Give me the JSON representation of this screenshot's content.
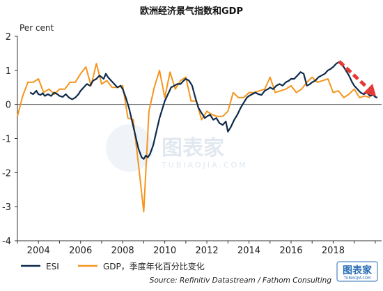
{
  "chart_data": {
    "type": "line",
    "title": "欧洲经济景气指数和GDP",
    "ylabel": "Per cent",
    "ylim": [
      -4,
      2
    ],
    "yticks": [
      2,
      1,
      0,
      -1,
      -2,
      -3,
      -4
    ],
    "xticks": [
      2004,
      2006,
      2008,
      2010,
      2012,
      2014,
      2016,
      2018
    ],
    "xlim": [
      2003,
      2020.3
    ],
    "grid": false,
    "legend_position": "bottom-left",
    "source": "Source: Refinitiv Datastream / Fathom Consulting",
    "colors": {
      "ESI": "#0d2a4a",
      "GDP": "#f5951d",
      "arrow": "#e53935"
    },
    "series": [
      {
        "name": "ESI",
        "color": "#0d2a4a",
        "x": [
          2003.6,
          2003.75,
          2003.9,
          2004.0,
          2004.1,
          2004.2,
          2004.3,
          2004.45,
          2004.6,
          2004.75,
          2004.9,
          2005.0,
          2005.15,
          2005.3,
          2005.45,
          2005.6,
          2005.75,
          2005.9,
          2006.0,
          2006.15,
          2006.3,
          2006.45,
          2006.6,
          2006.75,
          2006.9,
          2007.0,
          2007.1,
          2007.2,
          2007.3,
          2007.45,
          2007.6,
          2007.75,
          2007.9,
          2008.0,
          2008.15,
          2008.3,
          2008.45,
          2008.6,
          2008.75,
          2008.9,
          2009.0,
          2009.1,
          2009.2,
          2009.3,
          2009.45,
          2009.6,
          2009.75,
          2009.9,
          2010.0,
          2010.15,
          2010.3,
          2010.45,
          2010.6,
          2010.75,
          2010.9,
          2011.0,
          2011.15,
          2011.3,
          2011.45,
          2011.6,
          2011.75,
          2011.9,
          2012.0,
          2012.15,
          2012.3,
          2012.45,
          2012.6,
          2012.75,
          2012.9,
          2013.0,
          2013.15,
          2013.3,
          2013.45,
          2013.6,
          2013.75,
          2013.9,
          2014.0,
          2014.15,
          2014.3,
          2014.45,
          2014.6,
          2014.75,
          2014.9,
          2015.0,
          2015.15,
          2015.3,
          2015.45,
          2015.6,
          2015.75,
          2015.9,
          2016.0,
          2016.15,
          2016.3,
          2016.45,
          2016.6,
          2016.75,
          2016.9,
          2017.0,
          2017.15,
          2017.3,
          2017.45,
          2017.6,
          2017.75,
          2017.9,
          2018.0,
          2018.15,
          2018.3,
          2018.45,
          2018.6,
          2018.75,
          2018.9,
          2019.0,
          2019.15,
          2019.3,
          2019.45,
          2019.6,
          2019.75,
          2019.9,
          2020.0,
          2020.1
        ],
        "values": [
          0.35,
          0.3,
          0.4,
          0.3,
          0.28,
          0.33,
          0.25,
          0.3,
          0.25,
          0.35,
          0.3,
          0.25,
          0.22,
          0.3,
          0.2,
          0.15,
          0.2,
          0.3,
          0.4,
          0.5,
          0.6,
          0.55,
          0.7,
          0.75,
          0.85,
          0.8,
          0.75,
          0.9,
          0.8,
          0.7,
          0.6,
          0.5,
          0.55,
          0.45,
          0.2,
          -0.1,
          -0.5,
          -0.9,
          -1.3,
          -1.55,
          -1.6,
          -1.5,
          -1.55,
          -1.45,
          -1.2,
          -0.8,
          -0.4,
          -0.1,
          0.1,
          0.3,
          0.5,
          0.55,
          0.6,
          0.6,
          0.7,
          0.75,
          0.7,
          0.55,
          0.2,
          -0.1,
          -0.25,
          -0.4,
          -0.35,
          -0.3,
          -0.45,
          -0.4,
          -0.55,
          -0.6,
          -0.5,
          -0.8,
          -0.65,
          -0.45,
          -0.3,
          -0.1,
          0.05,
          0.2,
          0.25,
          0.3,
          0.35,
          0.3,
          0.28,
          0.4,
          0.45,
          0.5,
          0.45,
          0.55,
          0.6,
          0.55,
          0.65,
          0.7,
          0.75,
          0.75,
          0.85,
          0.95,
          0.9,
          0.55,
          0.6,
          0.65,
          0.7,
          0.8,
          0.85,
          0.9,
          1.0,
          1.05,
          1.1,
          1.2,
          1.25,
          1.15,
          1.0,
          0.85,
          0.65,
          0.55,
          0.45,
          0.35,
          0.3,
          0.35,
          0.25,
          0.28,
          0.22,
          0.2
        ]
      },
      {
        "name": "GDP，季度年化百分比变化",
        "color": "#f5951d",
        "x": [
          2003.0,
          2003.25,
          2003.5,
          2003.75,
          2004.0,
          2004.25,
          2004.5,
          2004.75,
          2005.0,
          2005.25,
          2005.5,
          2005.75,
          2006.0,
          2006.25,
          2006.5,
          2006.75,
          2007.0,
          2007.25,
          2007.5,
          2007.75,
          2008.0,
          2008.25,
          2008.5,
          2008.75,
          2009.0,
          2009.25,
          2009.5,
          2009.75,
          2010.0,
          2010.25,
          2010.5,
          2010.75,
          2011.0,
          2011.25,
          2011.5,
          2011.75,
          2012.0,
          2012.25,
          2012.5,
          2012.75,
          2013.0,
          2013.25,
          2013.5,
          2013.75,
          2014.0,
          2014.25,
          2014.5,
          2014.75,
          2015.0,
          2015.25,
          2015.5,
          2015.75,
          2016.0,
          2016.25,
          2016.5,
          2016.75,
          2017.0,
          2017.25,
          2017.5,
          2017.75,
          2018.0,
          2018.25,
          2018.5,
          2018.75,
          2019.0,
          2019.25,
          2019.5,
          2019.75
        ],
        "values": [
          -0.35,
          0.25,
          0.65,
          0.65,
          0.75,
          0.35,
          0.45,
          0.3,
          0.45,
          0.45,
          0.65,
          0.65,
          0.9,
          1.1,
          0.55,
          1.2,
          0.6,
          0.7,
          0.5,
          0.5,
          0.55,
          -0.4,
          -0.45,
          -1.75,
          -3.15,
          -0.2,
          0.5,
          1.0,
          0.2,
          0.95,
          0.45,
          0.7,
          0.8,
          0.1,
          0.1,
          -0.45,
          -0.2,
          -0.3,
          -0.35,
          -0.35,
          -0.2,
          0.35,
          0.2,
          0.2,
          0.35,
          0.35,
          0.4,
          0.45,
          0.8,
          0.35,
          0.4,
          0.45,
          0.55,
          0.35,
          0.45,
          0.65,
          0.8,
          0.65,
          0.7,
          0.75,
          0.35,
          0.4,
          0.2,
          0.3,
          0.45,
          0.2,
          0.25,
          0.2
        ]
      }
    ]
  },
  "watermark": {
    "text": "图表家",
    "sub": "TUBIAOJIA.COM"
  },
  "logo": {
    "text": "图表家",
    "sub": "TUBIAOJIA.COM"
  }
}
